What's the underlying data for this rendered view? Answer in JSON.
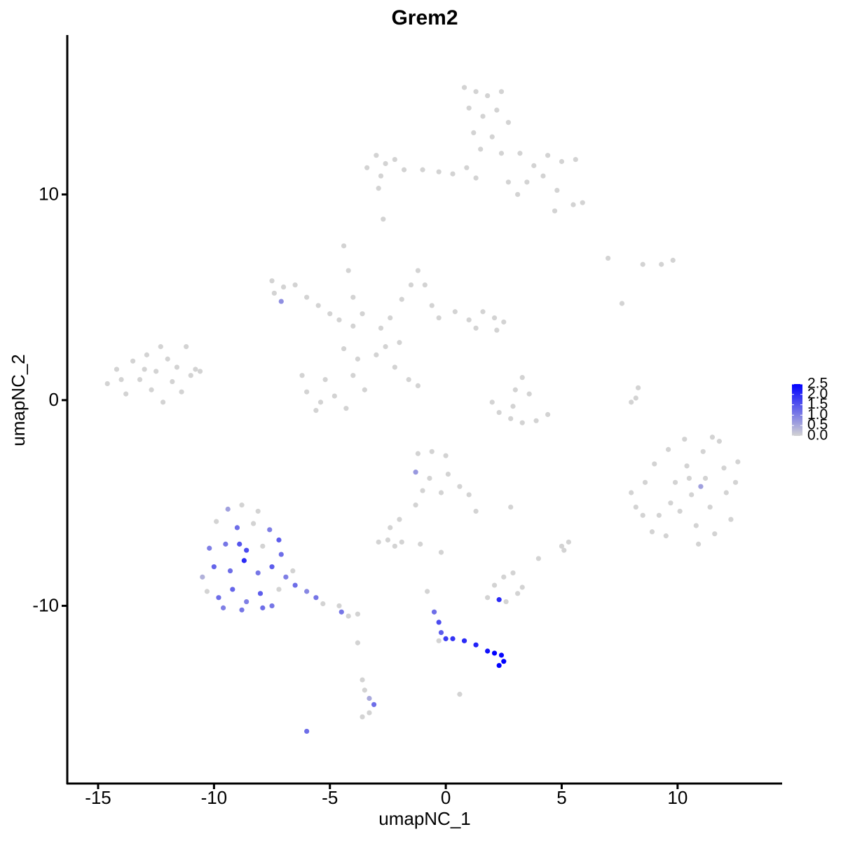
{
  "chart_data": {
    "type": "scatter",
    "title": "Grem2",
    "x_label": "umapNC_1",
    "y_label": "umapNC_2",
    "xlim": [
      -16.33,
      14.51
    ],
    "ylim": [
      -18.64,
      17.75
    ],
    "xticks": [
      -15,
      -10,
      -5,
      0,
      5,
      10
    ],
    "yticks": [
      -10,
      0,
      10
    ],
    "color_low": "#d3d3d3",
    "color_high": "#0000ff",
    "colorbar": {
      "lim": [
        0,
        2.5
      ],
      "ticks": [
        {
          "value": 0,
          "label": "0.0"
        },
        0.5,
        {
          "value": 1,
          "label": "1.0"
        },
        1.5,
        {
          "value": 2,
          "label": "2.0"
        },
        2.5
      ]
    },
    "points": [
      {
        "x": -14.6,
        "y": 0.8,
        "value": 0
      },
      {
        "x": -14.2,
        "y": 1.5,
        "value": 0
      },
      {
        "x": -13.8,
        "y": 0.3,
        "value": 0
      },
      {
        "x": -13.5,
        "y": 1.9,
        "value": 0
      },
      {
        "x": -13.2,
        "y": 1.0,
        "value": 0
      },
      {
        "x": -12.9,
        "y": 2.2,
        "value": 0
      },
      {
        "x": -12.7,
        "y": 0.5,
        "value": 0
      },
      {
        "x": -12.5,
        "y": 1.4,
        "value": 0
      },
      {
        "x": -12.2,
        "y": -0.1,
        "value": 0
      },
      {
        "x": -12.0,
        "y": 2.0,
        "value": 0
      },
      {
        "x": -11.8,
        "y": 0.9,
        "value": 0
      },
      {
        "x": -11.6,
        "y": 1.6,
        "value": 0
      },
      {
        "x": -11.4,
        "y": 0.4,
        "value": 0
      },
      {
        "x": -11.2,
        "y": 2.6,
        "value": 0
      },
      {
        "x": -11.0,
        "y": 1.2,
        "value": 0
      },
      {
        "x": -10.8,
        "y": 1.5,
        "value": 0
      },
      {
        "x": -10.6,
        "y": 1.4,
        "value": 0
      },
      {
        "x": -13.0,
        "y": 1.5,
        "value": 0
      },
      {
        "x": -12.3,
        "y": 2.6,
        "value": 0
      },
      {
        "x": -14.0,
        "y": 1.0,
        "value": 0
      },
      {
        "x": 0.8,
        "y": 15.2,
        "value": 0
      },
      {
        "x": 1.3,
        "y": 15.0,
        "value": 0
      },
      {
        "x": 1.8,
        "y": 14.8,
        "value": 0
      },
      {
        "x": 2.4,
        "y": 15.0,
        "value": 0
      },
      {
        "x": 1.0,
        "y": 14.2,
        "value": 0
      },
      {
        "x": 1.6,
        "y": 13.8,
        "value": 0
      },
      {
        "x": 2.2,
        "y": 14.1,
        "value": 0
      },
      {
        "x": 2.7,
        "y": 13.5,
        "value": 0
      },
      {
        "x": 1.2,
        "y": 13.0,
        "value": 0
      },
      {
        "x": 2.0,
        "y": 12.8,
        "value": 0
      },
      {
        "x": 1.5,
        "y": 12.2,
        "value": 0
      },
      {
        "x": 2.4,
        "y": 12.0,
        "value": 0
      },
      {
        "x": -3.4,
        "y": 11.3,
        "value": 0
      },
      {
        "x": -3.0,
        "y": 11.9,
        "value": 0
      },
      {
        "x": -2.6,
        "y": 11.5,
        "value": 0
      },
      {
        "x": -2.2,
        "y": 11.7,
        "value": 0
      },
      {
        "x": -2.8,
        "y": 10.9,
        "value": 0
      },
      {
        "x": -1.8,
        "y": 11.2,
        "value": 0
      },
      {
        "x": -1.0,
        "y": 11.2,
        "value": 0
      },
      {
        "x": -0.3,
        "y": 11.1,
        "value": 0
      },
      {
        "x": 0.3,
        "y": 11.0,
        "value": 0
      },
      {
        "x": 0.9,
        "y": 11.3,
        "value": 0
      },
      {
        "x": -2.9,
        "y": 10.3,
        "value": 0
      },
      {
        "x": -2.7,
        "y": 8.8,
        "value": 0
      },
      {
        "x": 3.2,
        "y": 12.0,
        "value": 0
      },
      {
        "x": 3.8,
        "y": 11.4,
        "value": 0
      },
      {
        "x": 4.4,
        "y": 11.9,
        "value": 0
      },
      {
        "x": 5.0,
        "y": 11.6,
        "value": 0
      },
      {
        "x": 5.6,
        "y": 11.7,
        "value": 0
      },
      {
        "x": 3.5,
        "y": 10.6,
        "value": 0
      },
      {
        "x": 4.2,
        "y": 10.9,
        "value": 0
      },
      {
        "x": 4.8,
        "y": 10.2,
        "value": 0
      },
      {
        "x": 5.5,
        "y": 9.5,
        "value": 0
      },
      {
        "x": 5.9,
        "y": 9.6,
        "value": 0
      },
      {
        "x": 4.7,
        "y": 9.2,
        "value": 0
      },
      {
        "x": 3.1,
        "y": 10.0,
        "value": 0
      },
      {
        "x": 1.3,
        "y": 10.8,
        "value": 0
      },
      {
        "x": 2.7,
        "y": 10.6,
        "value": 0
      },
      {
        "x": -7.5,
        "y": 5.8,
        "value": 0
      },
      {
        "x": -7.0,
        "y": 5.5,
        "value": 0
      },
      {
        "x": -7.4,
        "y": 5.2,
        "value": 0
      },
      {
        "x": -6.5,
        "y": 5.6,
        "value": 0
      },
      {
        "x": -6.0,
        "y": 5.0,
        "value": 0
      },
      {
        "x": -5.5,
        "y": 4.6,
        "value": 0
      },
      {
        "x": -5.0,
        "y": 4.2,
        "value": 0
      },
      {
        "x": -4.6,
        "y": 3.9,
        "value": 0
      },
      {
        "x": -4.0,
        "y": 3.6,
        "value": 0
      },
      {
        "x": -7.1,
        "y": 4.8,
        "value": 0.8
      },
      {
        "x": -4.4,
        "y": 7.5,
        "value": 0
      },
      {
        "x": -4.2,
        "y": 6.3,
        "value": 0
      },
      {
        "x": -4.0,
        "y": 5.0,
        "value": 0
      },
      {
        "x": -3.6,
        "y": 4.2,
        "value": 0
      },
      {
        "x": -1.2,
        "y": 6.3,
        "value": 0
      },
      {
        "x": -1.5,
        "y": 5.6,
        "value": 0
      },
      {
        "x": -0.9,
        "y": 5.6,
        "value": 0
      },
      {
        "x": -1.9,
        "y": 4.9,
        "value": 0
      },
      {
        "x": -0.6,
        "y": 4.6,
        "value": 0
      },
      {
        "x": -2.4,
        "y": 4.0,
        "value": 0
      },
      {
        "x": -2.8,
        "y": 3.5,
        "value": 0
      },
      {
        "x": -0.3,
        "y": 4.0,
        "value": 0
      },
      {
        "x": 0.4,
        "y": 4.3,
        "value": 0
      },
      {
        "x": 1.0,
        "y": 3.9,
        "value": 0
      },
      {
        "x": 1.6,
        "y": 4.3,
        "value": 0
      },
      {
        "x": 2.1,
        "y": 4.0,
        "value": 0
      },
      {
        "x": 2.5,
        "y": 3.8,
        "value": 0
      },
      {
        "x": 2.2,
        "y": 3.4,
        "value": 0
      },
      {
        "x": 1.3,
        "y": 3.5,
        "value": 0
      },
      {
        "x": -6.2,
        "y": 1.2,
        "value": 0
      },
      {
        "x": -6.0,
        "y": 0.4,
        "value": 0
      },
      {
        "x": -5.6,
        "y": -0.5,
        "value": 0
      },
      {
        "x": -5.2,
        "y": 1.0,
        "value": 0
      },
      {
        "x": -4.8,
        "y": 0.2,
        "value": 0
      },
      {
        "x": -4.3,
        "y": -0.4,
        "value": 0
      },
      {
        "x": -4.0,
        "y": 1.2,
        "value": 0
      },
      {
        "x": -3.8,
        "y": 2.0,
        "value": 0
      },
      {
        "x": -4.4,
        "y": 2.5,
        "value": 0
      },
      {
        "x": -3.5,
        "y": 0.5,
        "value": 0
      },
      {
        "x": -5.4,
        "y": -0.1,
        "value": 0
      },
      {
        "x": -2.6,
        "y": 2.6,
        "value": 0
      },
      {
        "x": -2.0,
        "y": 2.8,
        "value": 0
      },
      {
        "x": -1.6,
        "y": 1.0,
        "value": 0
      },
      {
        "x": -1.2,
        "y": 0.7,
        "value": 0
      },
      {
        "x": -2.2,
        "y": 1.6,
        "value": 0
      },
      {
        "x": -3.0,
        "y": 2.2,
        "value": 0
      },
      {
        "x": 2.0,
        "y": -0.1,
        "value": 0
      },
      {
        "x": 2.3,
        "y": -0.6,
        "value": 0
      },
      {
        "x": 2.8,
        "y": -0.9,
        "value": 0
      },
      {
        "x": 3.3,
        "y": -1.1,
        "value": 0
      },
      {
        "x": 3.9,
        "y": -1.0,
        "value": 0
      },
      {
        "x": 4.4,
        "y": -0.7,
        "value": 0
      },
      {
        "x": 3.0,
        "y": 0.5,
        "value": 0
      },
      {
        "x": 3.3,
        "y": 1.1,
        "value": 0
      },
      {
        "x": 3.6,
        "y": 0.3,
        "value": 0
      },
      {
        "x": 2.9,
        "y": -0.3,
        "value": 0
      },
      {
        "x": 8.0,
        "y": -0.1,
        "value": 0
      },
      {
        "x": 8.3,
        "y": 0.6,
        "value": 0
      },
      {
        "x": 8.2,
        "y": 0.1,
        "value": 0
      },
      {
        "x": 7.0,
        "y": 6.9,
        "value": 0
      },
      {
        "x": 8.5,
        "y": 6.6,
        "value": 0
      },
      {
        "x": 9.3,
        "y": 6.6,
        "value": 0
      },
      {
        "x": 9.8,
        "y": 6.8,
        "value": 0
      },
      {
        "x": 7.6,
        "y": 4.7,
        "value": 0
      },
      {
        "x": 8.0,
        "y": -4.5,
        "value": 0
      },
      {
        "x": 8.2,
        "y": -5.2,
        "value": 0
      },
      {
        "x": 8.6,
        "y": -4.0,
        "value": 0
      },
      {
        "x": 9.0,
        "y": -3.1,
        "value": 0
      },
      {
        "x": 9.2,
        "y": -5.6,
        "value": 0
      },
      {
        "x": 9.5,
        "y": -6.6,
        "value": 0
      },
      {
        "x": 9.6,
        "y": -2.4,
        "value": 0
      },
      {
        "x": 9.9,
        "y": -4.0,
        "value": 0
      },
      {
        "x": 10.1,
        "y": -5.4,
        "value": 0
      },
      {
        "x": 10.3,
        "y": -1.9,
        "value": 0
      },
      {
        "x": 10.4,
        "y": -3.2,
        "value": 0
      },
      {
        "x": 10.6,
        "y": -4.6,
        "value": 0
      },
      {
        "x": 10.8,
        "y": -6.1,
        "value": 0
      },
      {
        "x": 10.9,
        "y": -7.0,
        "value": 0
      },
      {
        "x": 11.1,
        "y": -2.5,
        "value": 0
      },
      {
        "x": 11.2,
        "y": -3.8,
        "value": 0
      },
      {
        "x": 11.4,
        "y": -5.2,
        "value": 0
      },
      {
        "x": 11.6,
        "y": -6.5,
        "value": 0
      },
      {
        "x": 11.8,
        "y": -2.0,
        "value": 0
      },
      {
        "x": 12.0,
        "y": -3.3,
        "value": 0
      },
      {
        "x": 12.1,
        "y": -4.5,
        "value": 0
      },
      {
        "x": 12.3,
        "y": -5.8,
        "value": 0
      },
      {
        "x": 12.6,
        "y": -3.0,
        "value": 0
      },
      {
        "x": 12.5,
        "y": -4.0,
        "value": 0
      },
      {
        "x": 8.9,
        "y": -6.4,
        "value": 0
      },
      {
        "x": 11.0,
        "y": -4.2,
        "value": 0.6
      },
      {
        "x": 9.7,
        "y": -5.0,
        "value": 0
      },
      {
        "x": 10.5,
        "y": -3.8,
        "value": 0
      },
      {
        "x": 11.5,
        "y": -1.8,
        "value": 0
      },
      {
        "x": 8.5,
        "y": -5.6,
        "value": 0
      },
      {
        "x": -1.2,
        "y": -2.6,
        "value": 0
      },
      {
        "x": -0.6,
        "y": -2.5,
        "value": 0
      },
      {
        "x": 0.0,
        "y": -2.7,
        "value": 0
      },
      {
        "x": -1.3,
        "y": -3.5,
        "value": 0.7
      },
      {
        "x": -0.7,
        "y": -3.8,
        "value": 0
      },
      {
        "x": 0.1,
        "y": -3.6,
        "value": 0
      },
      {
        "x": 0.6,
        "y": -4.2,
        "value": 0
      },
      {
        "x": -1.0,
        "y": -4.4,
        "value": 0
      },
      {
        "x": -0.2,
        "y": -4.5,
        "value": 0
      },
      {
        "x": 1.0,
        "y": -4.6,
        "value": 0
      },
      {
        "x": 1.3,
        "y": -5.4,
        "value": 0
      },
      {
        "x": -1.3,
        "y": -5.1,
        "value": 0
      },
      {
        "x": -2.0,
        "y": -5.8,
        "value": 0
      },
      {
        "x": -2.4,
        "y": -6.2,
        "value": 0
      },
      {
        "x": 2.8,
        "y": -5.2,
        "value": 0
      },
      {
        "x": -2.9,
        "y": -6.9,
        "value": 0
      },
      {
        "x": -2.5,
        "y": -6.8,
        "value": 0
      },
      {
        "x": -2.2,
        "y": -7.1,
        "value": 0
      },
      {
        "x": -1.9,
        "y": -6.9,
        "value": 0
      },
      {
        "x": -1.1,
        "y": -7.0,
        "value": 0
      },
      {
        "x": -0.2,
        "y": -7.4,
        "value": 0
      },
      {
        "x": 5.0,
        "y": -7.1,
        "value": 0
      },
      {
        "x": 5.3,
        "y": -6.9,
        "value": 0
      },
      {
        "x": 4.0,
        "y": -7.7,
        "value": 0
      },
      {
        "x": 5.1,
        "y": -7.3,
        "value": 0
      },
      {
        "x": 1.8,
        "y": -9.6,
        "value": 0
      },
      {
        "x": 2.1,
        "y": -9.0,
        "value": 0
      },
      {
        "x": 2.5,
        "y": -8.6,
        "value": 0
      },
      {
        "x": 2.9,
        "y": -8.4,
        "value": 0
      },
      {
        "x": 3.1,
        "y": -9.4,
        "value": 0
      },
      {
        "x": 2.6,
        "y": -9.8,
        "value": 0
      },
      {
        "x": 2.3,
        "y": -9.7,
        "value": 2.0
      },
      {
        "x": 3.3,
        "y": -9.1,
        "value": 0
      },
      {
        "x": -9.4,
        "y": -5.3,
        "value": 0.6
      },
      {
        "x": -8.8,
        "y": -5.1,
        "value": 0
      },
      {
        "x": -8.1,
        "y": -5.4,
        "value": 0
      },
      {
        "x": -9.9,
        "y": -5.9,
        "value": 0
      },
      {
        "x": -9.0,
        "y": -6.2,
        "value": 1.2
      },
      {
        "x": -8.3,
        "y": -6.0,
        "value": 0
      },
      {
        "x": -7.6,
        "y": -6.3,
        "value": 1.0
      },
      {
        "x": -7.2,
        "y": -6.8,
        "value": 1.4
      },
      {
        "x": -10.2,
        "y": -7.2,
        "value": 1.0
      },
      {
        "x": -9.5,
        "y": -7.0,
        "value": 1.1
      },
      {
        "x": -8.6,
        "y": -7.3,
        "value": 1.6
      },
      {
        "x": -7.9,
        "y": -7.1,
        "value": 0
      },
      {
        "x": -7.1,
        "y": -7.5,
        "value": 1.2
      },
      {
        "x": -10.5,
        "y": -8.6,
        "value": 0.4
      },
      {
        "x": -10.0,
        "y": -8.1,
        "value": 1.3
      },
      {
        "x": -9.3,
        "y": -8.3,
        "value": 1.2
      },
      {
        "x": -8.7,
        "y": -7.8,
        "value": 2.0
      },
      {
        "x": -8.1,
        "y": -8.4,
        "value": 1.1
      },
      {
        "x": -7.5,
        "y": -8.1,
        "value": 1.4
      },
      {
        "x": -6.9,
        "y": -8.6,
        "value": 1.0
      },
      {
        "x": -6.5,
        "y": -9.0,
        "value": 1.2
      },
      {
        "x": -6.0,
        "y": -9.3,
        "value": 0.9
      },
      {
        "x": -5.6,
        "y": -9.6,
        "value": 1.1
      },
      {
        "x": -5.3,
        "y": -9.9,
        "value": 0
      },
      {
        "x": -10.3,
        "y": -9.3,
        "value": 0
      },
      {
        "x": -9.8,
        "y": -9.6,
        "value": 1.2
      },
      {
        "x": -9.2,
        "y": -9.2,
        "value": 1.3
      },
      {
        "x": -8.6,
        "y": -9.8,
        "value": 1.0
      },
      {
        "x": -8.0,
        "y": -9.4,
        "value": 1.4
      },
      {
        "x": -7.5,
        "y": -10.0,
        "value": 1.1
      },
      {
        "x": -7.2,
        "y": -9.2,
        "value": 0
      },
      {
        "x": -9.6,
        "y": -10.1,
        "value": 1.0
      },
      {
        "x": -8.8,
        "y": -10.2,
        "value": 1.1
      },
      {
        "x": -7.9,
        "y": -10.1,
        "value": 1.2
      },
      {
        "x": -4.6,
        "y": -10.0,
        "value": 0
      },
      {
        "x": -4.2,
        "y": -10.5,
        "value": 0
      },
      {
        "x": -3.8,
        "y": -10.4,
        "value": 0
      },
      {
        "x": -4.5,
        "y": -10.3,
        "value": 1.1
      },
      {
        "x": -8.9,
        "y": -7.0,
        "value": 1.5
      },
      {
        "x": -6.6,
        "y": -8.3,
        "value": 0
      },
      {
        "x": -0.8,
        "y": -9.3,
        "value": 0
      },
      {
        "x": -0.5,
        "y": -10.3,
        "value": 1.2
      },
      {
        "x": -0.3,
        "y": -10.8,
        "value": 1.6
      },
      {
        "x": -0.2,
        "y": -11.3,
        "value": 1.4
      },
      {
        "x": -0.3,
        "y": -11.7,
        "value": 0
      },
      {
        "x": 0.0,
        "y": -11.6,
        "value": 1.8
      },
      {
        "x": 0.3,
        "y": -11.6,
        "value": 1.9
      },
      {
        "x": 0.8,
        "y": -11.7,
        "value": 2.0
      },
      {
        "x": 1.3,
        "y": -11.9,
        "value": 2.1
      },
      {
        "x": 1.8,
        "y": -12.2,
        "value": 2.3
      },
      {
        "x": 2.1,
        "y": -12.3,
        "value": 2.5
      },
      {
        "x": 2.4,
        "y": -12.4,
        "value": 2.4
      },
      {
        "x": 2.5,
        "y": -12.7,
        "value": 2.5
      },
      {
        "x": 2.3,
        "y": -12.9,
        "value": 2.5
      },
      {
        "x": -3.6,
        "y": -13.6,
        "value": 0
      },
      {
        "x": -3.5,
        "y": -14.1,
        "value": 0
      },
      {
        "x": -3.3,
        "y": -14.5,
        "value": 0.5
      },
      {
        "x": -3.1,
        "y": -14.8,
        "value": 1.2
      },
      {
        "x": -3.3,
        "y": -15.2,
        "value": 0
      },
      {
        "x": -3.6,
        "y": -15.4,
        "value": 0
      },
      {
        "x": -6.0,
        "y": -16.1,
        "value": 1.2
      },
      {
        "x": 0.6,
        "y": -14.3,
        "value": 0
      },
      {
        "x": -3.8,
        "y": -11.8,
        "value": 0
      }
    ]
  }
}
